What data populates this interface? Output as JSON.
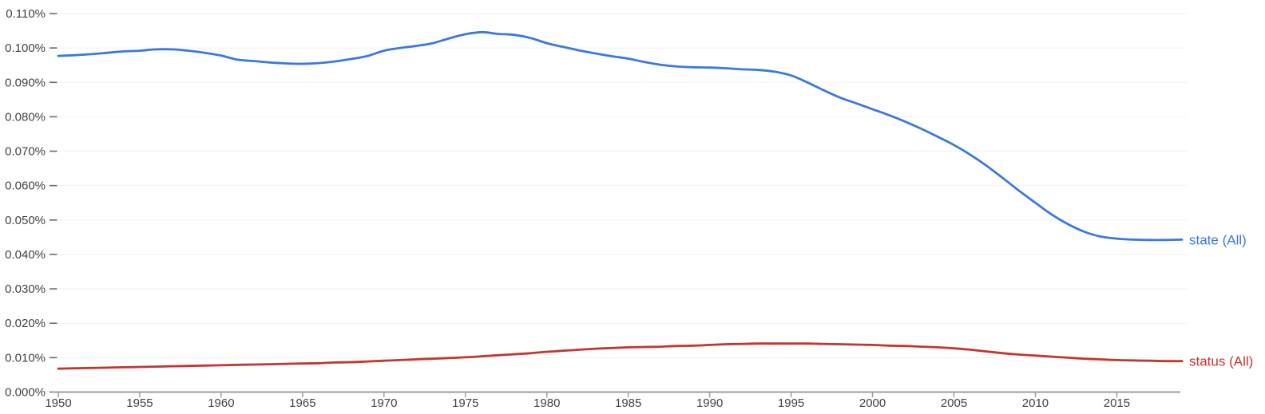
{
  "chart_data": {
    "type": "line",
    "title": "",
    "xlabel": "",
    "ylabel": "",
    "grid": "horizontal",
    "legend_position": "line-end-right",
    "xlim": [
      1950,
      2019
    ],
    "ylim_percent": [
      0,
      0.11
    ],
    "x_ticks": [
      {
        "value": 1950,
        "label": "1950"
      },
      {
        "value": 1955,
        "label": "1955"
      },
      {
        "value": 1960,
        "label": "1960"
      },
      {
        "value": 1965,
        "label": "1965"
      },
      {
        "value": 1970,
        "label": "1970"
      },
      {
        "value": 1975,
        "label": "1975"
      },
      {
        "value": 1980,
        "label": "1980"
      },
      {
        "value": 1985,
        "label": "1985"
      },
      {
        "value": 1990,
        "label": "1990"
      },
      {
        "value": 1995,
        "label": "1995"
      },
      {
        "value": 2000,
        "label": "2000"
      },
      {
        "value": 2005,
        "label": "2005"
      },
      {
        "value": 2010,
        "label": "2010"
      },
      {
        "value": 2015,
        "label": "2015"
      }
    ],
    "y_ticks": [
      {
        "value": 0.0,
        "label": "0.000%"
      },
      {
        "value": 0.01,
        "label": "0.010%"
      },
      {
        "value": 0.02,
        "label": "0.020%"
      },
      {
        "value": 0.03,
        "label": "0.030%"
      },
      {
        "value": 0.04,
        "label": "0.040%"
      },
      {
        "value": 0.05,
        "label": "0.050%"
      },
      {
        "value": 0.06,
        "label": "0.060%"
      },
      {
        "value": 0.07,
        "label": "0.070%"
      },
      {
        "value": 0.08,
        "label": "0.080%"
      },
      {
        "value": 0.09,
        "label": "0.090%"
      },
      {
        "value": 0.1,
        "label": "0.100%"
      },
      {
        "value": 0.11,
        "label": "0.110%"
      }
    ],
    "x": [
      1950,
      1951,
      1952,
      1953,
      1954,
      1955,
      1956,
      1957,
      1958,
      1959,
      1960,
      1961,
      1962,
      1963,
      1964,
      1965,
      1966,
      1967,
      1968,
      1969,
      1970,
      1971,
      1972,
      1973,
      1974,
      1975,
      1976,
      1977,
      1978,
      1979,
      1980,
      1981,
      1982,
      1983,
      1984,
      1985,
      1986,
      1987,
      1988,
      1989,
      1990,
      1991,
      1992,
      1993,
      1994,
      1995,
      1996,
      1997,
      1998,
      1999,
      2000,
      2001,
      2002,
      2003,
      2004,
      2005,
      2006,
      2007,
      2008,
      2009,
      2010,
      2011,
      2012,
      2013,
      2014,
      2015,
      2016,
      2017,
      2018,
      2019
    ],
    "series": [
      {
        "name": "state (All)",
        "color": "#3b78e0",
        "values": [
          0.0977,
          0.0979,
          0.0982,
          0.0986,
          0.099,
          0.0992,
          0.0996,
          0.0996,
          0.0992,
          0.0986,
          0.0978,
          0.0966,
          0.0962,
          0.0958,
          0.0955,
          0.0954,
          0.0956,
          0.0961,
          0.0968,
          0.0977,
          0.0992,
          0.1,
          0.1006,
          0.1014,
          0.1028,
          0.104,
          0.1046,
          0.1041,
          0.1038,
          0.1029,
          0.1014,
          0.1003,
          0.0993,
          0.0984,
          0.0976,
          0.0969,
          0.0959,
          0.0951,
          0.0946,
          0.0944,
          0.0943,
          0.0941,
          0.0938,
          0.0936,
          0.0931,
          0.092,
          0.09,
          0.0877,
          0.0856,
          0.0839,
          0.0822,
          0.0805,
          0.0786,
          0.0765,
          0.0742,
          0.0718,
          0.069,
          0.0658,
          0.0622,
          0.0585,
          0.055,
          0.0516,
          0.0488,
          0.0466,
          0.0452,
          0.0446,
          0.0443,
          0.0442,
          0.0442,
          0.0443
        ]
      },
      {
        "name": "status (All)",
        "color": "#c5352f",
        "values": [
          0.0068,
          0.0069,
          0.007,
          0.0071,
          0.0072,
          0.0073,
          0.0074,
          0.0075,
          0.0076,
          0.0077,
          0.0078,
          0.0079,
          0.008,
          0.0081,
          0.0082,
          0.0083,
          0.0084,
          0.0086,
          0.0087,
          0.0089,
          0.0091,
          0.0093,
          0.0095,
          0.0097,
          0.0099,
          0.0101,
          0.0104,
          0.0107,
          0.011,
          0.0113,
          0.0117,
          0.012,
          0.0123,
          0.0126,
          0.0128,
          0.013,
          0.0131,
          0.0132,
          0.0134,
          0.0135,
          0.0137,
          0.0139,
          0.014,
          0.0141,
          0.0141,
          0.0141,
          0.0141,
          0.014,
          0.0139,
          0.0138,
          0.0137,
          0.0135,
          0.0134,
          0.0132,
          0.013,
          0.0127,
          0.0123,
          0.0118,
          0.0113,
          0.0109,
          0.0106,
          0.0103,
          0.01,
          0.0097,
          0.0095,
          0.0093,
          0.0092,
          0.0091,
          0.009,
          0.009
        ]
      }
    ],
    "colors": {
      "background": "#ffffff",
      "gridline": "#f2f2f2",
      "axis_line": "#9e9e9e",
      "y_tick_dash": "#6b6b6b",
      "tick_label": "#424242"
    }
  }
}
